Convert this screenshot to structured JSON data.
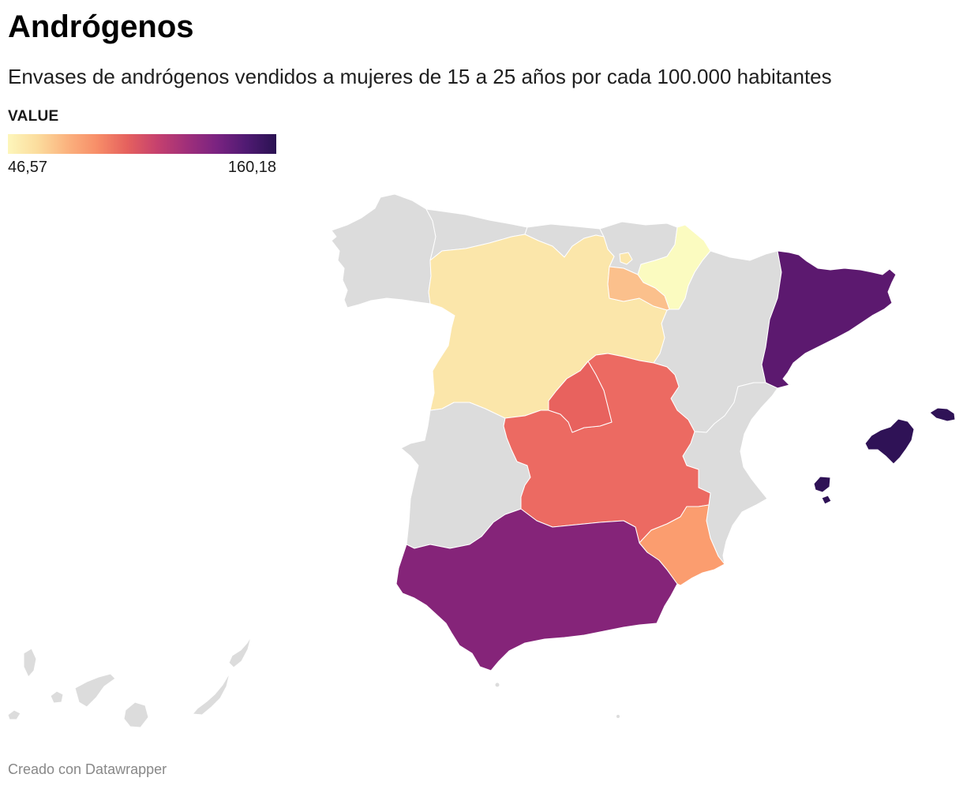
{
  "title": "Andrógenos",
  "subtitle": "Envases de andrógenos vendidos a mujeres de 15 a 25 años por cada 100.000 habitantes",
  "legend": {
    "title": "VALUE",
    "min_label": "46,57",
    "max_label": "160,18",
    "colors": [
      "#fdf6bb",
      "#fbdc9d",
      "#fbb27e",
      "#f78d68",
      "#e5615e",
      "#c6416e",
      "#a02f7a",
      "#7a2381",
      "#4f1a72",
      "#2a1252"
    ]
  },
  "map": {
    "no_data_color": "#dcdcdc",
    "border_color": "#ffffff",
    "regions": {
      "navarra": {
        "value": 46.57,
        "color": "#fbfbc0"
      },
      "castilla_y_leon": {
        "value": 55,
        "color": "#fbe6aa"
      },
      "la_rioja": {
        "value": 67,
        "color": "#fbc08c"
      },
      "murcia": {
        "value": 76,
        "color": "#fb9d6f"
      },
      "castilla_la_mancha": {
        "value": 95,
        "color": "#ec6a62"
      },
      "madrid": {
        "value": 97,
        "color": "#e8625e"
      },
      "andalucia": {
        "value": 133,
        "color": "#852479"
      },
      "cataluna": {
        "value": 146,
        "color": "#5c196f"
      },
      "baleares": {
        "value": 160.18,
        "color": "#2f1256"
      }
    }
  },
  "footer": "Creado con Datawrapper"
}
